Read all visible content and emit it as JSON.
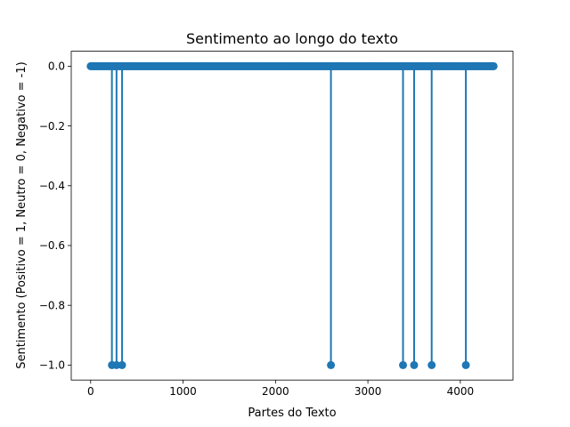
{
  "chart_data": {
    "type": "stem",
    "title": "Sentimento ao longo do texto",
    "xlabel": "Partes do Texto",
    "ylabel": "Sentimento (Positivo = 1, Neutro = 0, Negativo = -1)",
    "xlim": [
      -210,
      4570
    ],
    "ylim": [
      -1.05,
      0.05
    ],
    "xticks": [
      0,
      1000,
      2000,
      3000,
      4000
    ],
    "xtick_labels": [
      "0",
      "1000",
      "2000",
      "3000",
      "4000"
    ],
    "yticks": [
      0.0,
      -0.2,
      -0.4,
      -0.6,
      -0.8,
      -1.0
    ],
    "ytick_labels": [
      "0.0",
      "−0.2",
      "−0.4",
      "−0.6",
      "−0.8",
      "−1.0"
    ],
    "x_range": [
      0,
      4360
    ],
    "baseline_value": 0.0,
    "neutral_value": 0.0,
    "negative_value": -1.0,
    "negative_x": [
      230,
      280,
      340,
      2600,
      3380,
      3500,
      3690,
      4060
    ],
    "color": "#1f77b4",
    "grid": false,
    "legend": "none"
  }
}
